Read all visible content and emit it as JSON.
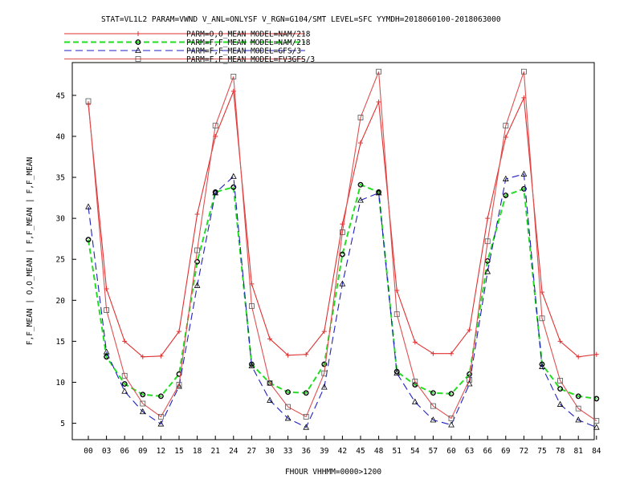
{
  "title": "STAT=VL1L2 PARAM=VWND V_ANL=ONLYSF V_RGN=G104/SMT LEVEL=SFC YYMDH=2018060100-2018063000",
  "chart_data": {
    "type": "line",
    "title": "STAT=VL1L2 PARAM=VWND V_ANL=ONLYSF V_RGN=G104/SMT LEVEL=SFC YYMDH=2018060100-2018063000",
    "xlabel": "FHOUR VHHMM=0000>1200",
    "ylabel": "F,F_MEAN | O,O_MEAN | F,F_MEAN | F,F_MEAN",
    "x": [
      "00",
      "03",
      "06",
      "09",
      "12",
      "15",
      "18",
      "21",
      "24",
      "27",
      "30",
      "33",
      "36",
      "39",
      "42",
      "45",
      "48",
      "51",
      "54",
      "57",
      "60",
      "63",
      "66",
      "69",
      "72",
      "75",
      "78",
      "81",
      "84"
    ],
    "ylim": [
      3,
      49
    ],
    "yticks": [
      5,
      10,
      15,
      20,
      25,
      30,
      35,
      40,
      45
    ],
    "grid": false,
    "legend_position": "top-left",
    "series": [
      {
        "name": "PARM=O,O_MEAN MODEL=NAM/218",
        "color": "#e03030",
        "dash": "",
        "marker": "plus",
        "values": [
          43.9,
          21.4,
          15.0,
          13.1,
          13.2,
          16.2,
          30.5,
          40.0,
          45.5,
          22.0,
          15.3,
          13.3,
          13.4,
          16.2,
          29.3,
          39.2,
          44.2,
          21.2,
          14.9,
          13.5,
          13.5,
          16.4,
          30.0,
          39.9,
          44.7,
          21.0,
          15.0,
          13.1,
          13.4
        ]
      },
      {
        "name": "PARM=F,F_MEAN MODEL=NAM/218",
        "color": "#22dd22",
        "dash": "7,4",
        "marker": "diamond",
        "values": [
          27.4,
          13.1,
          9.8,
          8.5,
          8.3,
          11.0,
          24.7,
          33.2,
          33.8,
          12.2,
          9.9,
          8.8,
          8.7,
          12.2,
          25.6,
          34.1,
          33.2,
          11.3,
          9.7,
          8.7,
          8.6,
          11.0,
          24.8,
          32.8,
          33.6,
          12.2,
          9.2,
          8.3,
          8.0
        ]
      },
      {
        "name": "PARM=F,F_MEAN MODEL=GFS/3",
        "color": "#2020c0",
        "dash": "9,5",
        "marker": "triangle",
        "values": [
          31.4,
          13.7,
          8.9,
          6.4,
          4.9,
          9.5,
          21.8,
          33.1,
          35.1,
          12.0,
          7.8,
          5.6,
          4.5,
          9.4,
          22.0,
          32.2,
          33.1,
          11.1,
          7.6,
          5.4,
          4.8,
          9.8,
          23.5,
          34.8,
          35.4,
          11.9,
          7.3,
          5.4,
          4.5
        ]
      },
      {
        "name": "PARM=F,F_MEAN MODEL=FV3GFS/3",
        "color": "#e05050",
        "dash": "",
        "marker": "square",
        "values": [
          44.3,
          18.8,
          10.8,
          7.4,
          5.8,
          9.7,
          26.1,
          41.3,
          47.3,
          19.3,
          9.9,
          7.0,
          5.8,
          11.1,
          28.3,
          42.3,
          47.9,
          18.3,
          10.1,
          7.1,
          5.6,
          10.3,
          27.2,
          41.3,
          47.9,
          17.8,
          10.2,
          6.8,
          5.3
        ]
      }
    ]
  }
}
